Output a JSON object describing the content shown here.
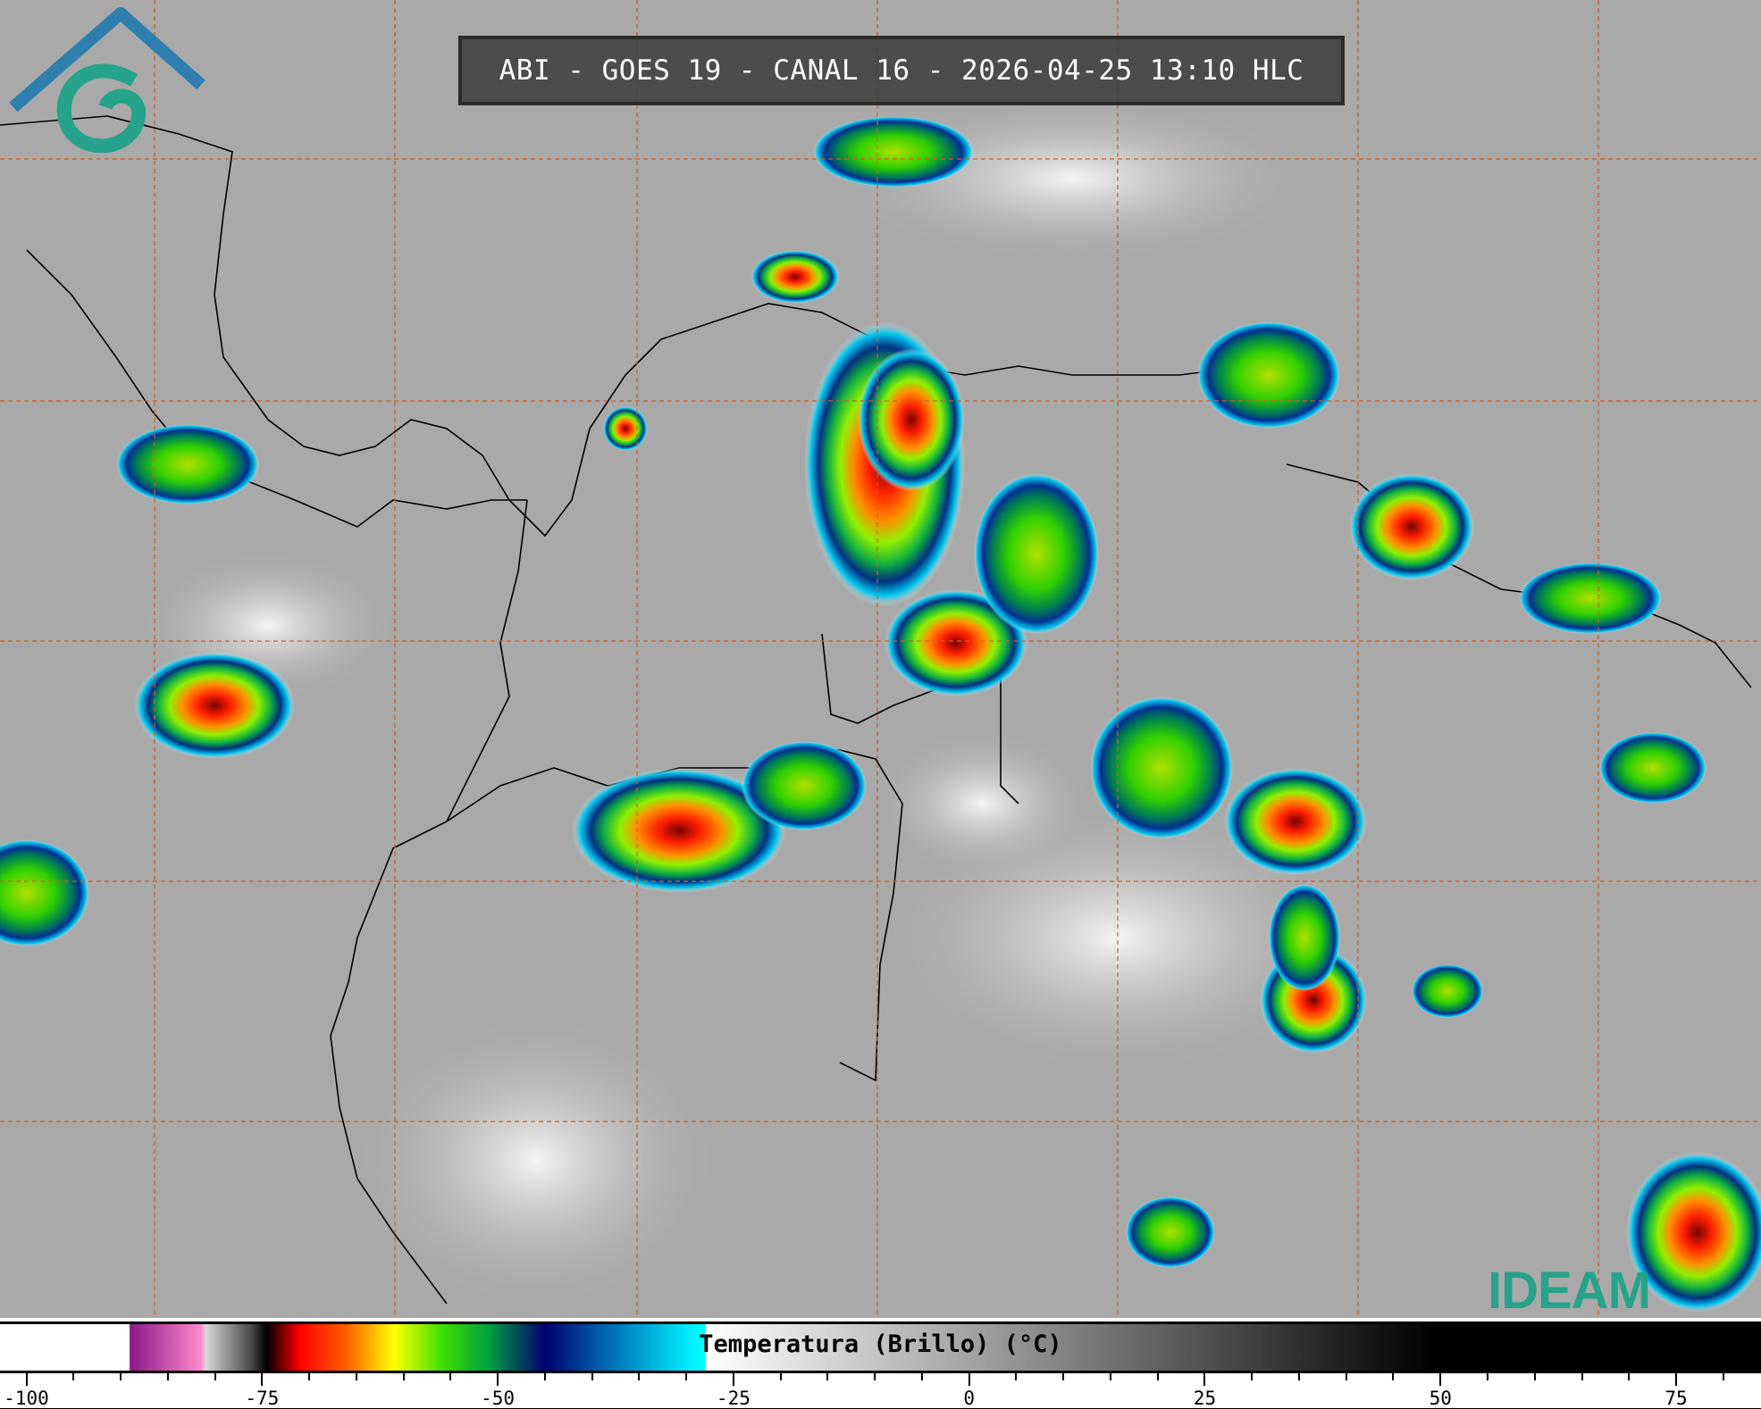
{
  "title": "ABI - GOES 19 - CANAL 16 - 2026-04-25 13:10 HLC",
  "logo": {
    "text": "IDEAM",
    "color": "#26a38a"
  },
  "colorbar": {
    "label": "Temperatura (Brillo) (°C)",
    "range": [
      -102.8,
      84
    ],
    "major_ticks": [
      -100,
      -75,
      -50,
      -25,
      0,
      25,
      50,
      75
    ],
    "minor_step": 5,
    "stops": [
      {
        "value": -102.8,
        "color": "#ffffff"
      },
      {
        "value": -89.1,
        "color": "#ffffff"
      },
      {
        "value": -89,
        "color": "#8a1a8a"
      },
      {
        "value": -81.5,
        "color": "#ff88cc"
      },
      {
        "value": -81,
        "color": "#d8d8d8"
      },
      {
        "value": -76,
        "color": "#444444"
      },
      {
        "value": -74.5,
        "color": "#000000"
      },
      {
        "value": -71,
        "color": "#ff0000"
      },
      {
        "value": -66,
        "color": "#ff6000"
      },
      {
        "value": -61,
        "color": "#ffff00"
      },
      {
        "value": -56,
        "color": "#40e000"
      },
      {
        "value": -51,
        "color": "#00a040"
      },
      {
        "value": -45,
        "color": "#000070"
      },
      {
        "value": -39,
        "color": "#0060b0"
      },
      {
        "value": -30,
        "color": "#00e8f8"
      },
      {
        "value": -28,
        "color": "#00ffff"
      },
      {
        "value": -27.9,
        "color": "#ffffff"
      },
      {
        "value": 49.5,
        "color": "#000000"
      },
      {
        "value": 84,
        "color": "#000000"
      }
    ]
  }
}
